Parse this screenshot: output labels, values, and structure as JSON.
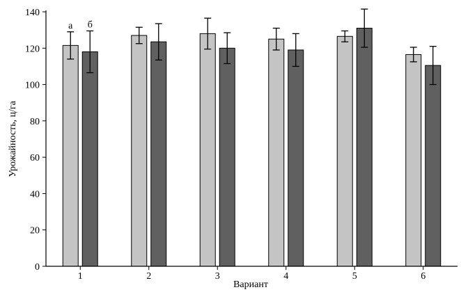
{
  "chart_data": {
    "type": "bar",
    "title": "",
    "xlabel": "Вариант",
    "ylabel": "Урожайность, ц/га",
    "categories": [
      "1",
      "2",
      "3",
      "4",
      "5",
      "6"
    ],
    "ylim": [
      0,
      140
    ],
    "yticks": [
      0,
      20,
      40,
      60,
      80,
      100,
      120,
      140
    ],
    "grid": false,
    "legend": "none",
    "series": [
      {
        "name": "а",
        "color": "#c4c4c4",
        "values": [
          121.5,
          127,
          128,
          125,
          126.5,
          116.5
        ],
        "errors": [
          7.5,
          4.5,
          8.5,
          6,
          3,
          4
        ]
      },
      {
        "name": "б",
        "color": "#606060",
        "values": [
          118,
          123.5,
          120,
          119,
          131,
          110.5
        ],
        "errors": [
          11.5,
          10,
          8.5,
          9,
          10.5,
          10.5
        ]
      }
    ]
  }
}
